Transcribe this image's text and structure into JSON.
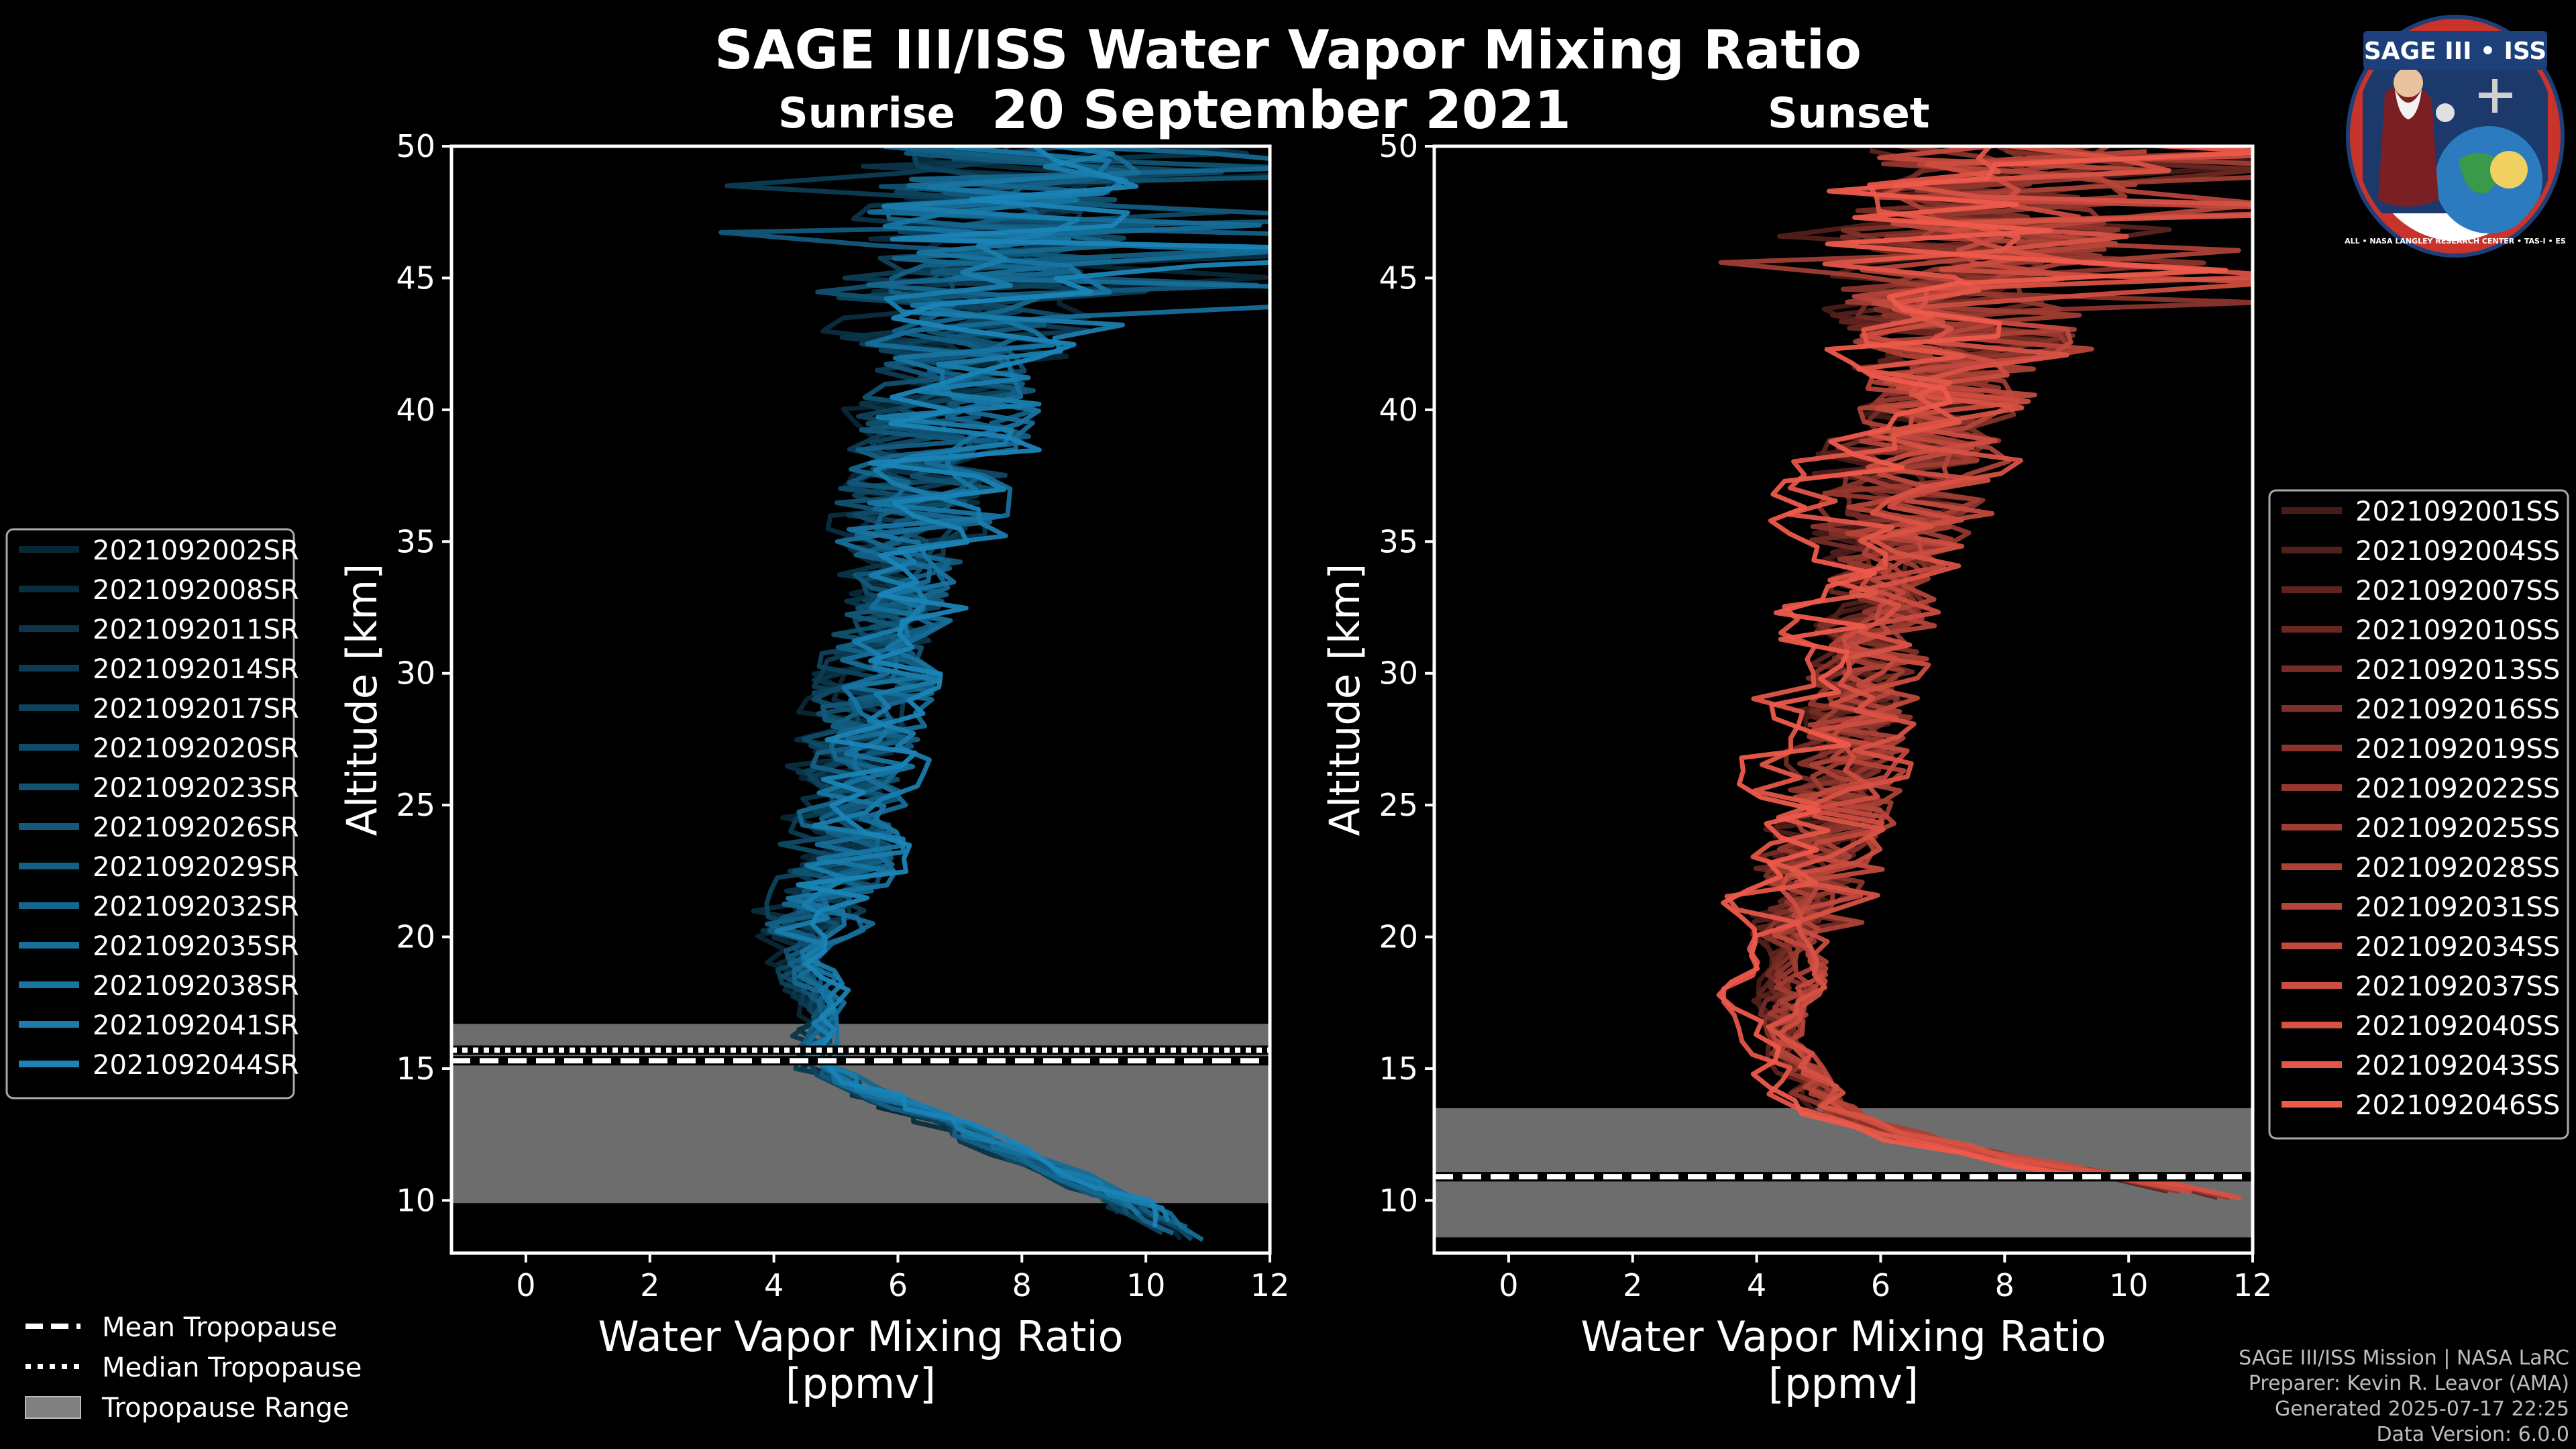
{
  "title": "SAGE III/ISS Water Vapor Mixing Ratio",
  "date": "20 September 2021",
  "credits": {
    "line1": "SAGE III/ISS Mission | NASA LaRC",
    "line2": "Preparer: Kevin R. Leavor (AMA)",
    "line3": "Generated 2025-07-17 22:25",
    "line4": "Data Version: 6.0.0"
  },
  "logo": {
    "text_top": "SAGE III • ISS",
    "text_ring": "BALL • NASA LANGLEY RESEARCH CENTER • TAS-I • ESA"
  },
  "tropopause_legend": {
    "mean": "Mean Tropopause",
    "median": "Median Tropopause",
    "range": "Tropopause Range"
  },
  "colors": {
    "sunrise": "#1f9bd7",
    "sunset": "#ee5a4b",
    "tropo_fill": "#808080"
  },
  "chart_data": [
    {
      "type": "line",
      "name": "sunrise",
      "title": "Sunrise",
      "xlabel": "Water Vapor Mixing Ratio\n[ppmv]",
      "xlabel_line1": "Water Vapor Mixing Ratio",
      "xlabel_line2": "[ppmv]",
      "ylabel": "Altitude [km]",
      "xlim": [
        -1.2,
        12
      ],
      "ylim": [
        8,
        50
      ],
      "xticks": [
        0,
        2,
        4,
        6,
        8,
        10,
        12
      ],
      "yticks": [
        10,
        15,
        20,
        25,
        30,
        35,
        40,
        45,
        50
      ],
      "grid": false,
      "legend_position": "left",
      "series": [
        "2021092002SR",
        "2021092008SR",
        "2021092011SR",
        "2021092014SR",
        "2021092017SR",
        "2021092020SR",
        "2021092023SR",
        "2021092026SR",
        "2021092029SR",
        "2021092032SR",
        "2021092035SR",
        "2021092038SR",
        "2021092041SR",
        "2021092044SR"
      ],
      "profile_template": {
        "altitude": [
          8.5,
          10,
          12,
          14,
          15,
          16,
          17,
          18,
          19,
          20,
          22,
          25,
          28,
          30,
          33,
          36,
          40,
          44,
          47,
          50
        ],
        "ppmv": [
          10.5,
          9.5,
          7.5,
          5.5,
          4.6,
          4.5,
          4.6,
          4.3,
          4.2,
          4.3,
          4.6,
          4.9,
          5.2,
          5.4,
          5.7,
          6.0,
          6.5,
          7.0,
          7.3,
          7.6
        ]
      },
      "tropopause": {
        "mean": 15.3,
        "median": 15.7,
        "range": [
          9.9,
          16.7
        ]
      }
    },
    {
      "type": "line",
      "name": "sunset",
      "title": "Sunset",
      "xlabel": "Water Vapor Mixing Ratio\n[ppmv]",
      "xlabel_line1": "Water Vapor Mixing Ratio",
      "xlabel_line2": "[ppmv]",
      "ylabel": "Altitude [km]",
      "xlim": [
        -1.2,
        12
      ],
      "ylim": [
        8,
        50
      ],
      "xticks": [
        0,
        2,
        4,
        6,
        8,
        10,
        12
      ],
      "yticks": [
        10,
        15,
        20,
        25,
        30,
        35,
        40,
        45,
        50
      ],
      "grid": false,
      "legend_position": "right",
      "series": [
        "2021092001SS",
        "2021092004SS",
        "2021092007SS",
        "2021092010SS",
        "2021092013SS",
        "2021092016SS",
        "2021092019SS",
        "2021092022SS",
        "2021092025SS",
        "2021092028SS",
        "2021092031SS",
        "2021092034SS",
        "2021092037SS",
        "2021092040SS",
        "2021092043SS",
        "2021092046SS"
      ],
      "profile_template": {
        "altitude": [
          10,
          11,
          12,
          13,
          14,
          15,
          16,
          17,
          18,
          20,
          22,
          25,
          28,
          30,
          33,
          36,
          40,
          44,
          47,
          50
        ],
        "ppmv": [
          11.5,
          9.5,
          7.0,
          5.5,
          4.8,
          4.5,
          4.3,
          4.2,
          4.3,
          4.5,
          4.7,
          5.0,
          5.3,
          5.5,
          5.8,
          6.1,
          6.6,
          7.1,
          7.4,
          7.8
        ]
      },
      "tropopause": {
        "mean": 10.9,
        "median": 10.9,
        "range": [
          8.6,
          13.5
        ]
      }
    }
  ]
}
